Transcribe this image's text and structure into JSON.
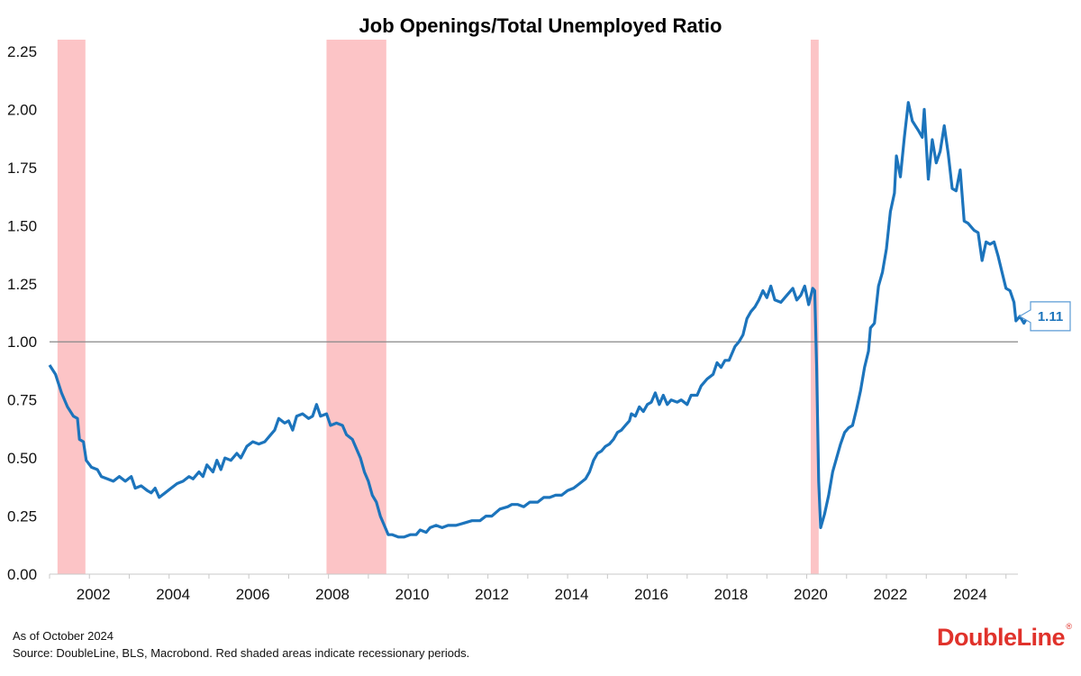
{
  "chart_data": {
    "type": "line",
    "title": "Job Openings/Total Unemployed Ratio",
    "xlabel": "",
    "ylabel": "",
    "xlim": [
      2001.0,
      2025.3
    ],
    "ylim": [
      0,
      2.25
    ],
    "yticks": [
      "0.00",
      "0.25",
      "0.50",
      "0.75",
      "1.00",
      "1.25",
      "1.50",
      "1.75",
      "2.00",
      "2.25"
    ],
    "xticks": [
      "2002",
      "2004",
      "2006",
      "2008",
      "2010",
      "2012",
      "2014",
      "2016",
      "2018",
      "2020",
      "2022",
      "2024"
    ],
    "reference_line": 1.0,
    "recessions": [
      [
        2001.2,
        2001.9
      ],
      [
        2007.95,
        2009.45
      ],
      [
        2020.1,
        2020.3
      ]
    ],
    "last_value_label": "1.11",
    "grid": false,
    "colors": {
      "line": "#1c74bc",
      "recession": "#fcc4c6",
      "reference": "#888888",
      "callout_border": "#5b9bd5"
    },
    "series": [
      {
        "values": [
          [
            2001.0,
            0.9
          ],
          [
            2001.15,
            0.86
          ],
          [
            2001.3,
            0.78
          ],
          [
            2001.45,
            0.72
          ],
          [
            2001.6,
            0.68
          ],
          [
            2001.7,
            0.67
          ],
          [
            2001.75,
            0.58
          ],
          [
            2001.85,
            0.57
          ],
          [
            2001.92,
            0.49
          ],
          [
            2002.05,
            0.46
          ],
          [
            2002.2,
            0.45
          ],
          [
            2002.3,
            0.42
          ],
          [
            2002.45,
            0.41
          ],
          [
            2002.6,
            0.4
          ],
          [
            2002.75,
            0.42
          ],
          [
            2002.9,
            0.4
          ],
          [
            2003.05,
            0.42
          ],
          [
            2003.15,
            0.37
          ],
          [
            2003.3,
            0.38
          ],
          [
            2003.45,
            0.36
          ],
          [
            2003.55,
            0.35
          ],
          [
            2003.65,
            0.37
          ],
          [
            2003.75,
            0.33
          ],
          [
            2003.9,
            0.35
          ],
          [
            2004.05,
            0.37
          ],
          [
            2004.2,
            0.39
          ],
          [
            2004.35,
            0.4
          ],
          [
            2004.5,
            0.42
          ],
          [
            2004.6,
            0.41
          ],
          [
            2004.75,
            0.44
          ],
          [
            2004.85,
            0.42
          ],
          [
            2004.95,
            0.47
          ],
          [
            2005.1,
            0.44
          ],
          [
            2005.2,
            0.49
          ],
          [
            2005.3,
            0.45
          ],
          [
            2005.4,
            0.5
          ],
          [
            2005.55,
            0.49
          ],
          [
            2005.7,
            0.52
          ],
          [
            2005.8,
            0.5
          ],
          [
            2005.95,
            0.55
          ],
          [
            2006.1,
            0.57
          ],
          [
            2006.25,
            0.56
          ],
          [
            2006.4,
            0.57
          ],
          [
            2006.55,
            0.6
          ],
          [
            2006.65,
            0.62
          ],
          [
            2006.75,
            0.67
          ],
          [
            2006.9,
            0.65
          ],
          [
            2007.0,
            0.66
          ],
          [
            2007.1,
            0.62
          ],
          [
            2007.2,
            0.68
          ],
          [
            2007.35,
            0.69
          ],
          [
            2007.5,
            0.67
          ],
          [
            2007.6,
            0.68
          ],
          [
            2007.7,
            0.73
          ],
          [
            2007.8,
            0.68
          ],
          [
            2007.95,
            0.69
          ],
          [
            2008.05,
            0.64
          ],
          [
            2008.2,
            0.65
          ],
          [
            2008.35,
            0.64
          ],
          [
            2008.45,
            0.6
          ],
          [
            2008.6,
            0.58
          ],
          [
            2008.7,
            0.54
          ],
          [
            2008.8,
            0.5
          ],
          [
            2008.9,
            0.44
          ],
          [
            2009.0,
            0.4
          ],
          [
            2009.1,
            0.34
          ],
          [
            2009.2,
            0.31
          ],
          [
            2009.3,
            0.25
          ],
          [
            2009.4,
            0.21
          ],
          [
            2009.5,
            0.17
          ],
          [
            2009.6,
            0.17
          ],
          [
            2009.75,
            0.16
          ],
          [
            2009.9,
            0.16
          ],
          [
            2010.05,
            0.17
          ],
          [
            2010.2,
            0.17
          ],
          [
            2010.3,
            0.19
          ],
          [
            2010.45,
            0.18
          ],
          [
            2010.55,
            0.2
          ],
          [
            2010.7,
            0.21
          ],
          [
            2010.85,
            0.2
          ],
          [
            2011.0,
            0.21
          ],
          [
            2011.2,
            0.21
          ],
          [
            2011.4,
            0.22
          ],
          [
            2011.6,
            0.23
          ],
          [
            2011.8,
            0.23
          ],
          [
            2011.95,
            0.25
          ],
          [
            2012.1,
            0.25
          ],
          [
            2012.3,
            0.28
          ],
          [
            2012.5,
            0.29
          ],
          [
            2012.6,
            0.3
          ],
          [
            2012.75,
            0.3
          ],
          [
            2012.9,
            0.29
          ],
          [
            2013.05,
            0.31
          ],
          [
            2013.25,
            0.31
          ],
          [
            2013.4,
            0.33
          ],
          [
            2013.55,
            0.33
          ],
          [
            2013.7,
            0.34
          ],
          [
            2013.85,
            0.34
          ],
          [
            2014.0,
            0.36
          ],
          [
            2014.15,
            0.37
          ],
          [
            2014.3,
            0.39
          ],
          [
            2014.45,
            0.41
          ],
          [
            2014.55,
            0.44
          ],
          [
            2014.65,
            0.49
          ],
          [
            2014.75,
            0.52
          ],
          [
            2014.85,
            0.53
          ],
          [
            2014.95,
            0.55
          ],
          [
            2015.05,
            0.56
          ],
          [
            2015.15,
            0.58
          ],
          [
            2015.25,
            0.61
          ],
          [
            2015.35,
            0.62
          ],
          [
            2015.45,
            0.64
          ],
          [
            2015.55,
            0.66
          ],
          [
            2015.6,
            0.69
          ],
          [
            2015.7,
            0.68
          ],
          [
            2015.8,
            0.72
          ],
          [
            2015.9,
            0.7
          ],
          [
            2016.0,
            0.73
          ],
          [
            2016.1,
            0.74
          ],
          [
            2016.2,
            0.78
          ],
          [
            2016.3,
            0.73
          ],
          [
            2016.4,
            0.77
          ],
          [
            2016.5,
            0.73
          ],
          [
            2016.6,
            0.75
          ],
          [
            2016.75,
            0.74
          ],
          [
            2016.85,
            0.75
          ],
          [
            2017.0,
            0.73
          ],
          [
            2017.1,
            0.77
          ],
          [
            2017.25,
            0.77
          ],
          [
            2017.35,
            0.81
          ],
          [
            2017.5,
            0.84
          ],
          [
            2017.65,
            0.86
          ],
          [
            2017.75,
            0.91
          ],
          [
            2017.85,
            0.89
          ],
          [
            2017.95,
            0.92
          ],
          [
            2018.05,
            0.92
          ],
          [
            2018.2,
            0.98
          ],
          [
            2018.3,
            1.0
          ],
          [
            2018.4,
            1.03
          ],
          [
            2018.5,
            1.1
          ],
          [
            2018.6,
            1.13
          ],
          [
            2018.7,
            1.15
          ],
          [
            2018.8,
            1.18
          ],
          [
            2018.9,
            1.22
          ],
          [
            2019.0,
            1.19
          ],
          [
            2019.1,
            1.24
          ],
          [
            2019.2,
            1.18
          ],
          [
            2019.35,
            1.17
          ],
          [
            2019.5,
            1.2
          ],
          [
            2019.65,
            1.23
          ],
          [
            2019.75,
            1.18
          ],
          [
            2019.85,
            1.2
          ],
          [
            2019.95,
            1.24
          ],
          [
            2020.05,
            1.16
          ],
          [
            2020.15,
            1.23
          ],
          [
            2020.2,
            1.22
          ],
          [
            2020.25,
            0.88
          ],
          [
            2020.3,
            0.4
          ],
          [
            2020.35,
            0.2
          ],
          [
            2020.45,
            0.26
          ],
          [
            2020.55,
            0.34
          ],
          [
            2020.65,
            0.44
          ],
          [
            2020.75,
            0.5
          ],
          [
            2020.85,
            0.56
          ],
          [
            2020.95,
            0.61
          ],
          [
            2021.05,
            0.63
          ],
          [
            2021.15,
            0.64
          ],
          [
            2021.25,
            0.71
          ],
          [
            2021.35,
            0.79
          ],
          [
            2021.45,
            0.89
          ],
          [
            2021.55,
            0.96
          ],
          [
            2021.6,
            1.06
          ],
          [
            2021.7,
            1.08
          ],
          [
            2021.8,
            1.24
          ],
          [
            2021.9,
            1.3
          ],
          [
            2022.0,
            1.4
          ],
          [
            2022.1,
            1.56
          ],
          [
            2022.2,
            1.64
          ],
          [
            2022.25,
            1.8
          ],
          [
            2022.35,
            1.71
          ],
          [
            2022.45,
            1.88
          ],
          [
            2022.55,
            2.03
          ],
          [
            2022.65,
            1.95
          ],
          [
            2022.8,
            1.91
          ],
          [
            2022.9,
            1.88
          ],
          [
            2022.95,
            2.0
          ],
          [
            2023.05,
            1.7
          ],
          [
            2023.15,
            1.87
          ],
          [
            2023.25,
            1.77
          ],
          [
            2023.35,
            1.82
          ],
          [
            2023.45,
            1.93
          ],
          [
            2023.55,
            1.81
          ],
          [
            2023.65,
            1.66
          ],
          [
            2023.75,
            1.65
          ],
          [
            2023.85,
            1.74
          ],
          [
            2023.95,
            1.52
          ],
          [
            2024.05,
            1.51
          ],
          [
            2024.2,
            1.48
          ],
          [
            2024.3,
            1.47
          ],
          [
            2024.4,
            1.35
          ],
          [
            2024.5,
            1.43
          ],
          [
            2024.6,
            1.42
          ],
          [
            2024.7,
            1.43
          ],
          [
            2024.8,
            1.37
          ],
          [
            2024.9,
            1.3
          ],
          [
            2025.0,
            1.23
          ],
          [
            2025.1,
            1.22
          ],
          [
            2025.2,
            1.17
          ],
          [
            2025.25,
            1.09
          ],
          [
            2025.35,
            1.11
          ],
          [
            2025.45,
            1.08
          ],
          [
            2025.55,
            1.11
          ]
        ]
      }
    ]
  },
  "footer": {
    "as_of": "As of October 2024",
    "source": "Source: DoubleLine, BLS, Macrobond. Red shaded areas indicate recessionary periods."
  },
  "logo": {
    "text": "DoubleLine",
    "registered": "®"
  }
}
